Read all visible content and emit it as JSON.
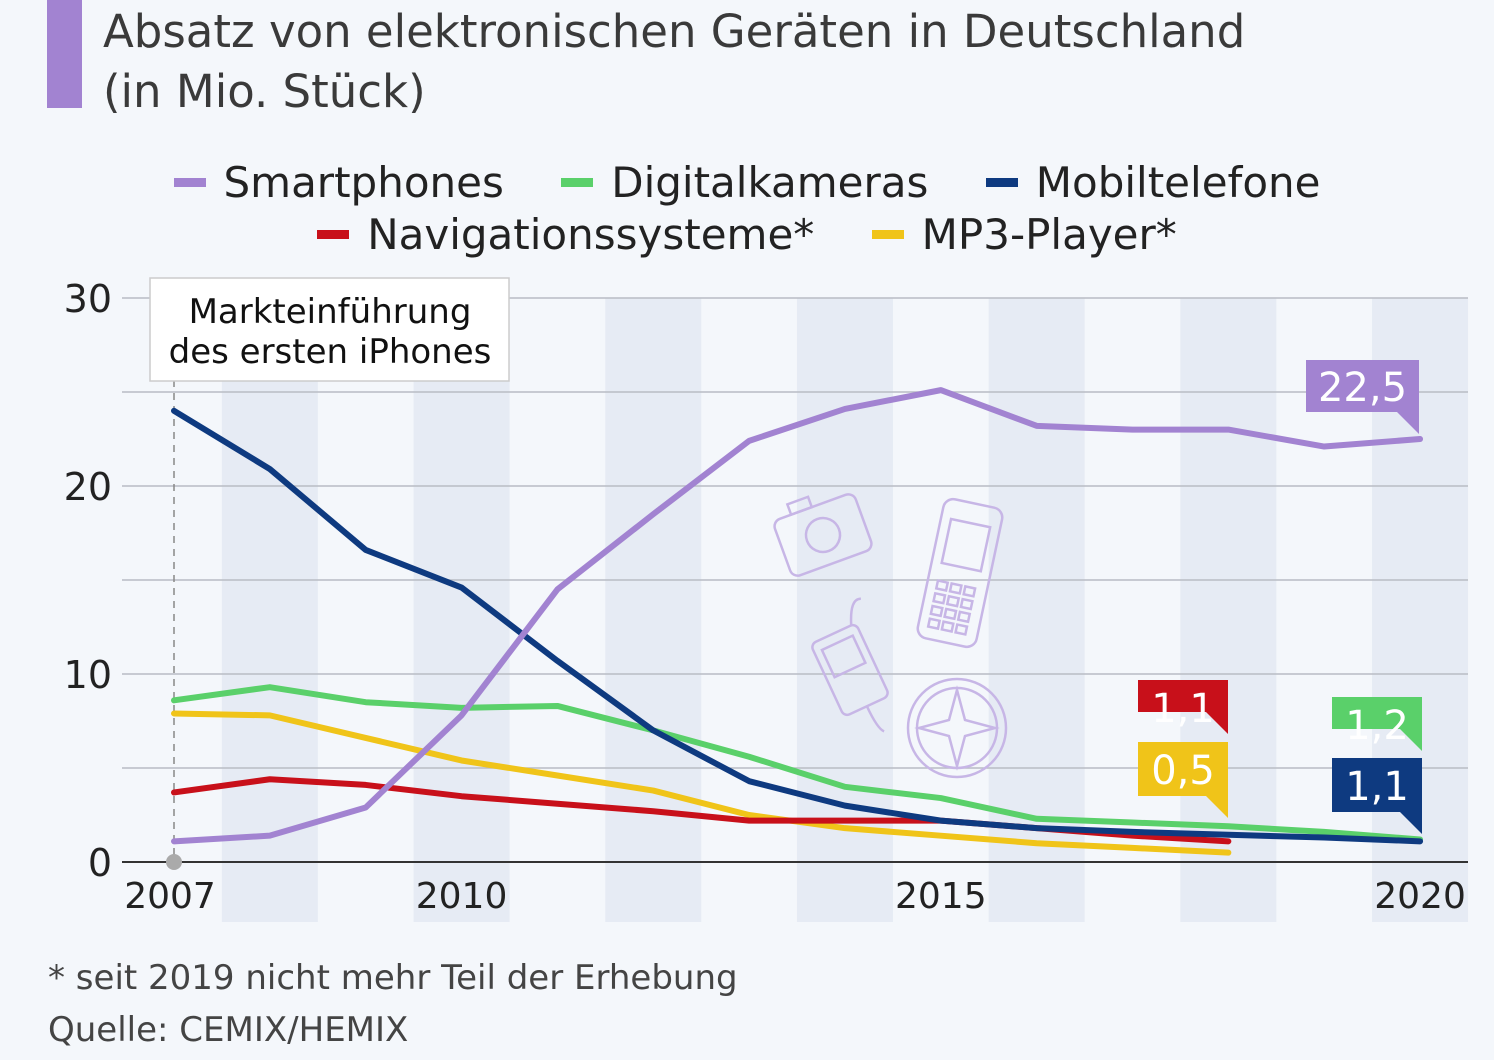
{
  "title_line1": "Absatz von elektronischen Geräten in Deutschland",
  "title_line2": "(in Mio. Stück)",
  "footnote": "* seit 2019 nicht mehr Teil der Erhebung",
  "source": "Quelle: CEMIX/HEMIX",
  "chart_data": {
    "type": "line",
    "title": "Absatz von elektronischen Geräten in Deutschland (in Mio. Stück)",
    "x": [
      2007,
      2008,
      2009,
      2010,
      2011,
      2012,
      2013,
      2014,
      2015,
      2016,
      2017,
      2018,
      2019,
      2020
    ],
    "xticks": [
      "2007",
      "2010",
      "2015",
      "2020"
    ],
    "yticks": [
      "0",
      "10",
      "20",
      "30"
    ],
    "ylim": [
      0,
      30
    ],
    "grid": true,
    "legend_placement": "top",
    "annotation": {
      "text_line1": "Markteinführung",
      "text_line2": "des ersten iPhones",
      "x": 2007
    },
    "series": [
      {
        "name": "Smartphones",
        "color": "#a283d1",
        "values": [
          1.1,
          1.4,
          2.9,
          7.8,
          14.5,
          18.5,
          22.4,
          24.1,
          25.1,
          23.2,
          23.0,
          23.0,
          22.1,
          22.5
        ],
        "end_label": "22,5"
      },
      {
        "name": "Digitalkameras",
        "color": "#5ad06a",
        "values": [
          8.6,
          9.3,
          8.5,
          8.2,
          8.3,
          7.0,
          5.6,
          4.0,
          3.4,
          2.3,
          2.1,
          1.9,
          1.6,
          1.2
        ],
        "end_label": "1,2"
      },
      {
        "name": "Mobiltelefone",
        "color": "#0e3a80",
        "values": [
          24.0,
          20.9,
          16.6,
          14.6,
          10.7,
          7.0,
          4.3,
          3.0,
          2.2,
          1.8,
          1.6,
          1.45,
          1.3,
          1.1
        ],
        "end_label": "1,1"
      },
      {
        "name": "Navigationssysteme*",
        "color": "#c8101a",
        "values": [
          3.7,
          4.4,
          4.1,
          3.5,
          3.1,
          2.7,
          2.2,
          2.2,
          2.2,
          1.8,
          1.4,
          1.1,
          null,
          null
        ],
        "end_label": "1,1"
      },
      {
        "name": "MP3-Player*",
        "color": "#f0c419",
        "values": [
          7.9,
          7.8,
          6.6,
          5.4,
          4.6,
          3.8,
          2.5,
          1.8,
          1.4,
          1.0,
          0.75,
          0.5,
          null,
          null
        ],
        "end_label": "0,5"
      }
    ]
  },
  "icons": [
    "camera-icon",
    "mobile-phone-icon",
    "mp3-player-icon",
    "compass-icon"
  ]
}
